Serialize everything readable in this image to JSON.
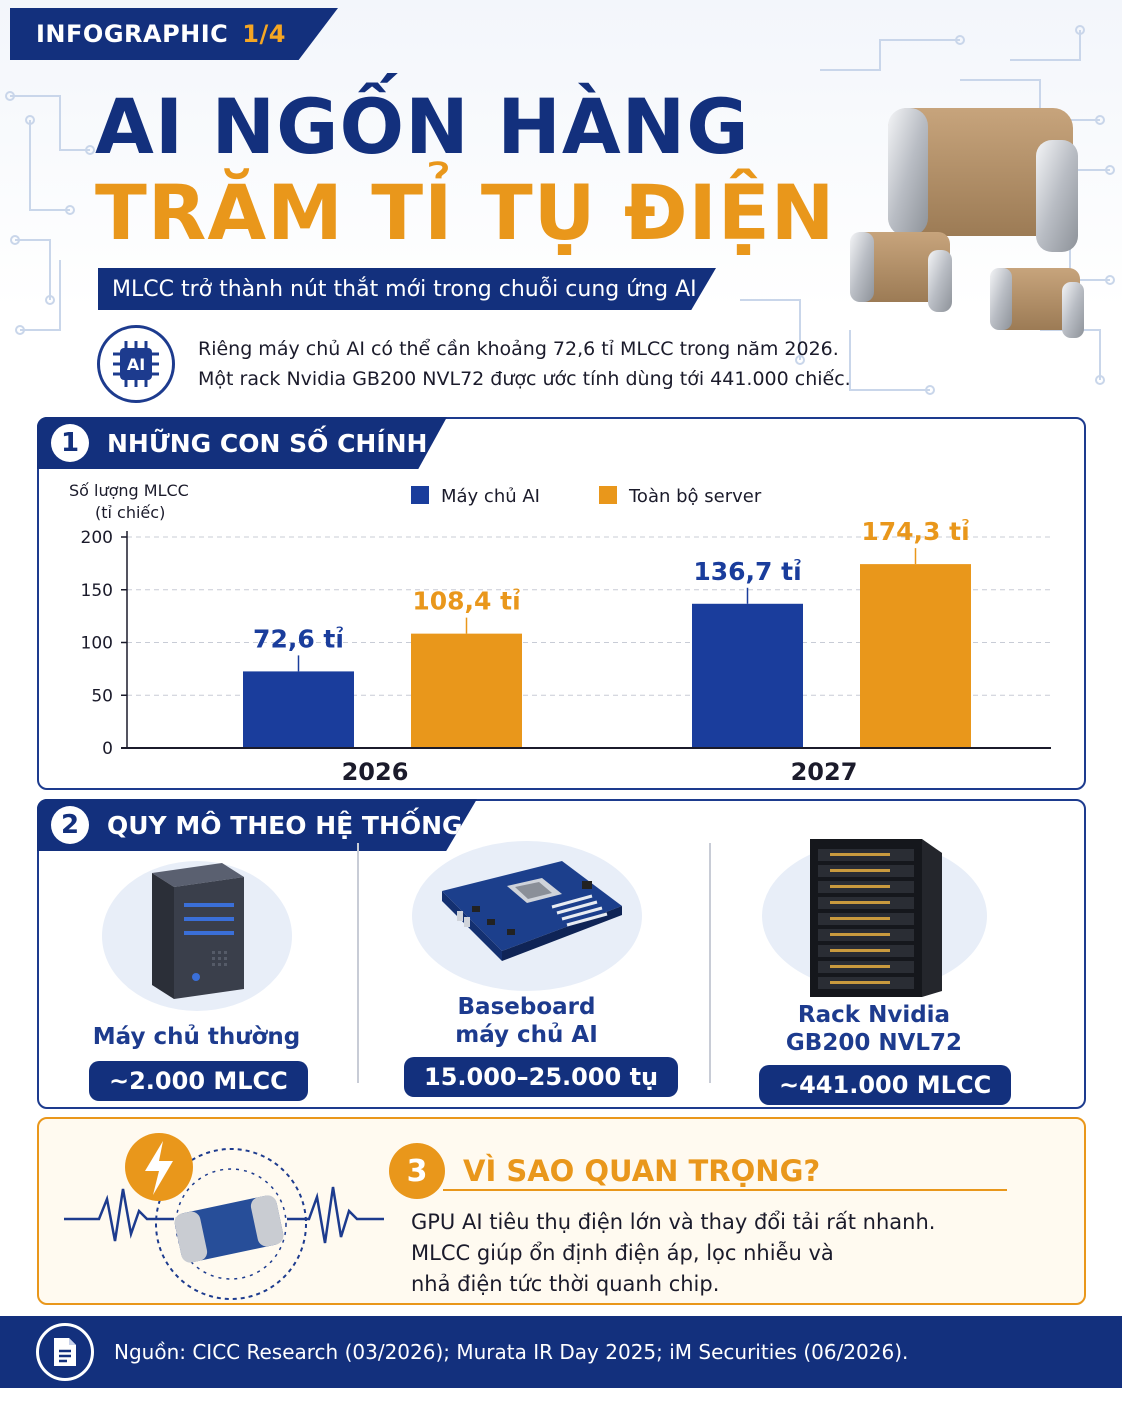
{
  "header": {
    "tag_label": "INFOGRAPHIC",
    "tag_page": "1/4",
    "title_line1": "AI NGỐN HÀNG",
    "title_line2": "TRĂM TỈ TỤ ĐIỆN",
    "subtitle": "MLCC trở thành nút thắt mới trong chuỗi cung ứng AI",
    "badge_text": "AI",
    "intro_line1": "Riêng máy chủ AI có thể cần khoảng 72,6 tỉ MLCC trong năm 2026.",
    "intro_line2": "Một rack Nvidia GB200 NVL72 được ước tính dùng tới 441.000 chiếc."
  },
  "section1": {
    "number": "1",
    "title": "NHỮNG CON SỐ CHÍNH"
  },
  "chart_data": {
    "type": "bar",
    "categories": [
      "2026",
      "2027"
    ],
    "series": [
      {
        "name": "Máy chủ AI",
        "values": [
          72.6,
          136.7
        ],
        "labels": [
          "72,6 tỉ",
          "136,7 tỉ"
        ],
        "color": "#1a3d9c"
      },
      {
        "name": "Toàn bộ server",
        "values": [
          108.4,
          174.3
        ],
        "labels": [
          "108,4 tỉ",
          "174,3 tỉ"
        ],
        "color": "#e9971b"
      }
    ],
    "ylabel_line1": "Số lượng MLCC",
    "ylabel_line2": "(tỉ chiếc)",
    "yticks": [
      "0",
      "50",
      "100",
      "150",
      "200"
    ],
    "ylim": [
      0,
      200
    ],
    "legend": "top",
    "grid": true
  },
  "section2": {
    "number": "2",
    "title": "QUY MÔ THEO HỆ THỐNG",
    "items": [
      {
        "name_line1": "Máy chủ thường",
        "name_line2": "",
        "value": "~2.000 MLCC",
        "icon": "server-tower-icon"
      },
      {
        "name_line1": "Baseboard",
        "name_line2": "máy chủ AI",
        "value": "15.000–25.000 tụ",
        "icon": "motherboard-icon"
      },
      {
        "name_line1": "Rack Nvidia",
        "name_line2": "GB200 NVL72",
        "value": "~441.000 MLCC",
        "icon": "server-rack-icon"
      }
    ]
  },
  "section3": {
    "number": "3",
    "title": "VÌ SAO QUAN TRỌNG?",
    "line1": "GPU AI tiêu thụ điện lớn và thay đổi tải rất nhanh.",
    "line2": "MLCC giúp ổn định điện áp, lọc nhiễu và",
    "line3": "nhả điện tức thời quanh chip."
  },
  "footer": {
    "source": "Nguồn: CICC Research (03/2026); Murata IR Day 2025; iM Securities (06/2026)."
  },
  "colors": {
    "navy": "#13307d",
    "orange": "#e9971b"
  }
}
